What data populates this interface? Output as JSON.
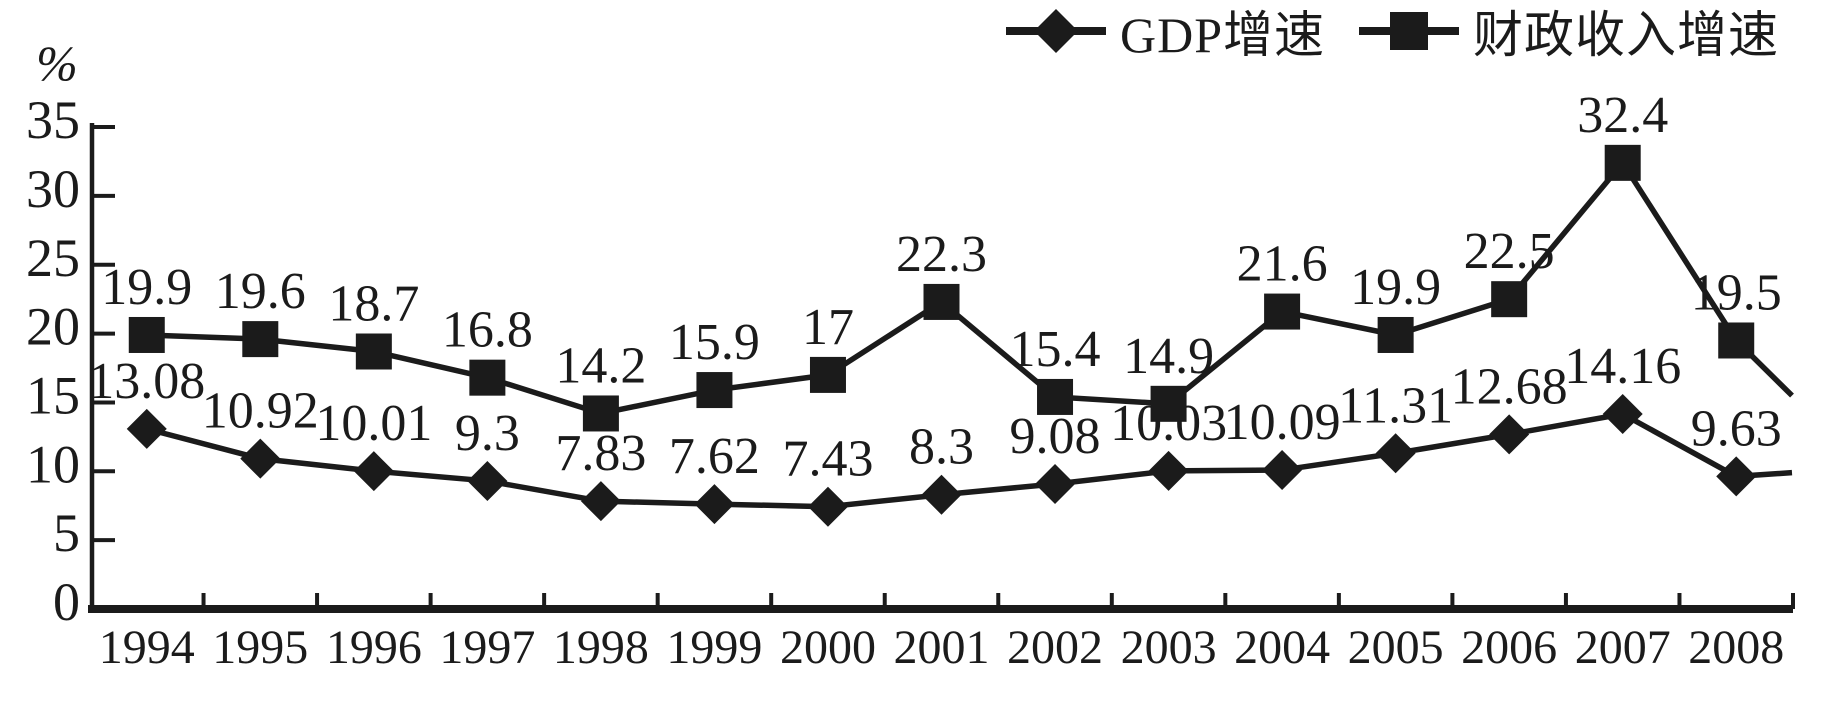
{
  "figure": {
    "background": "#ffffff",
    "ink_color": "#1b1b1b"
  },
  "chart_data": {
    "type": "line",
    "title": "",
    "xlabel": "",
    "ylabel": "%",
    "ylim": [
      0,
      35
    ],
    "yticks": [
      0,
      5,
      10,
      15,
      20,
      25,
      30,
      35
    ],
    "grid": false,
    "legend_position": "top-right",
    "categories": [
      "1994",
      "1995",
      "1996",
      "1997",
      "1998",
      "1999",
      "2000",
      "2001",
      "2002",
      "2003",
      "2004",
      "2005",
      "2006",
      "2007",
      "2008"
    ],
    "series": [
      {
        "name": "GDP增速",
        "marker": "diamond",
        "color": "#1b1b1b",
        "values": [
          13.08,
          10.92,
          10.01,
          9.3,
          7.83,
          7.62,
          7.43,
          8.3,
          9.08,
          10.03,
          10.09,
          11.31,
          12.68,
          14.16,
          9.63
        ],
        "tail_value_at_right_edge": 9.9
      },
      {
        "name": "财政收入增速",
        "marker": "square",
        "color": "#1b1b1b",
        "values": [
          19.9,
          19.6,
          18.7,
          16.8,
          14.2,
          15.9,
          17,
          22.3,
          15.4,
          14.9,
          21.6,
          19.9,
          22.5,
          32.4,
          19.5
        ],
        "tail_value_at_right_edge": 15.5
      }
    ]
  }
}
